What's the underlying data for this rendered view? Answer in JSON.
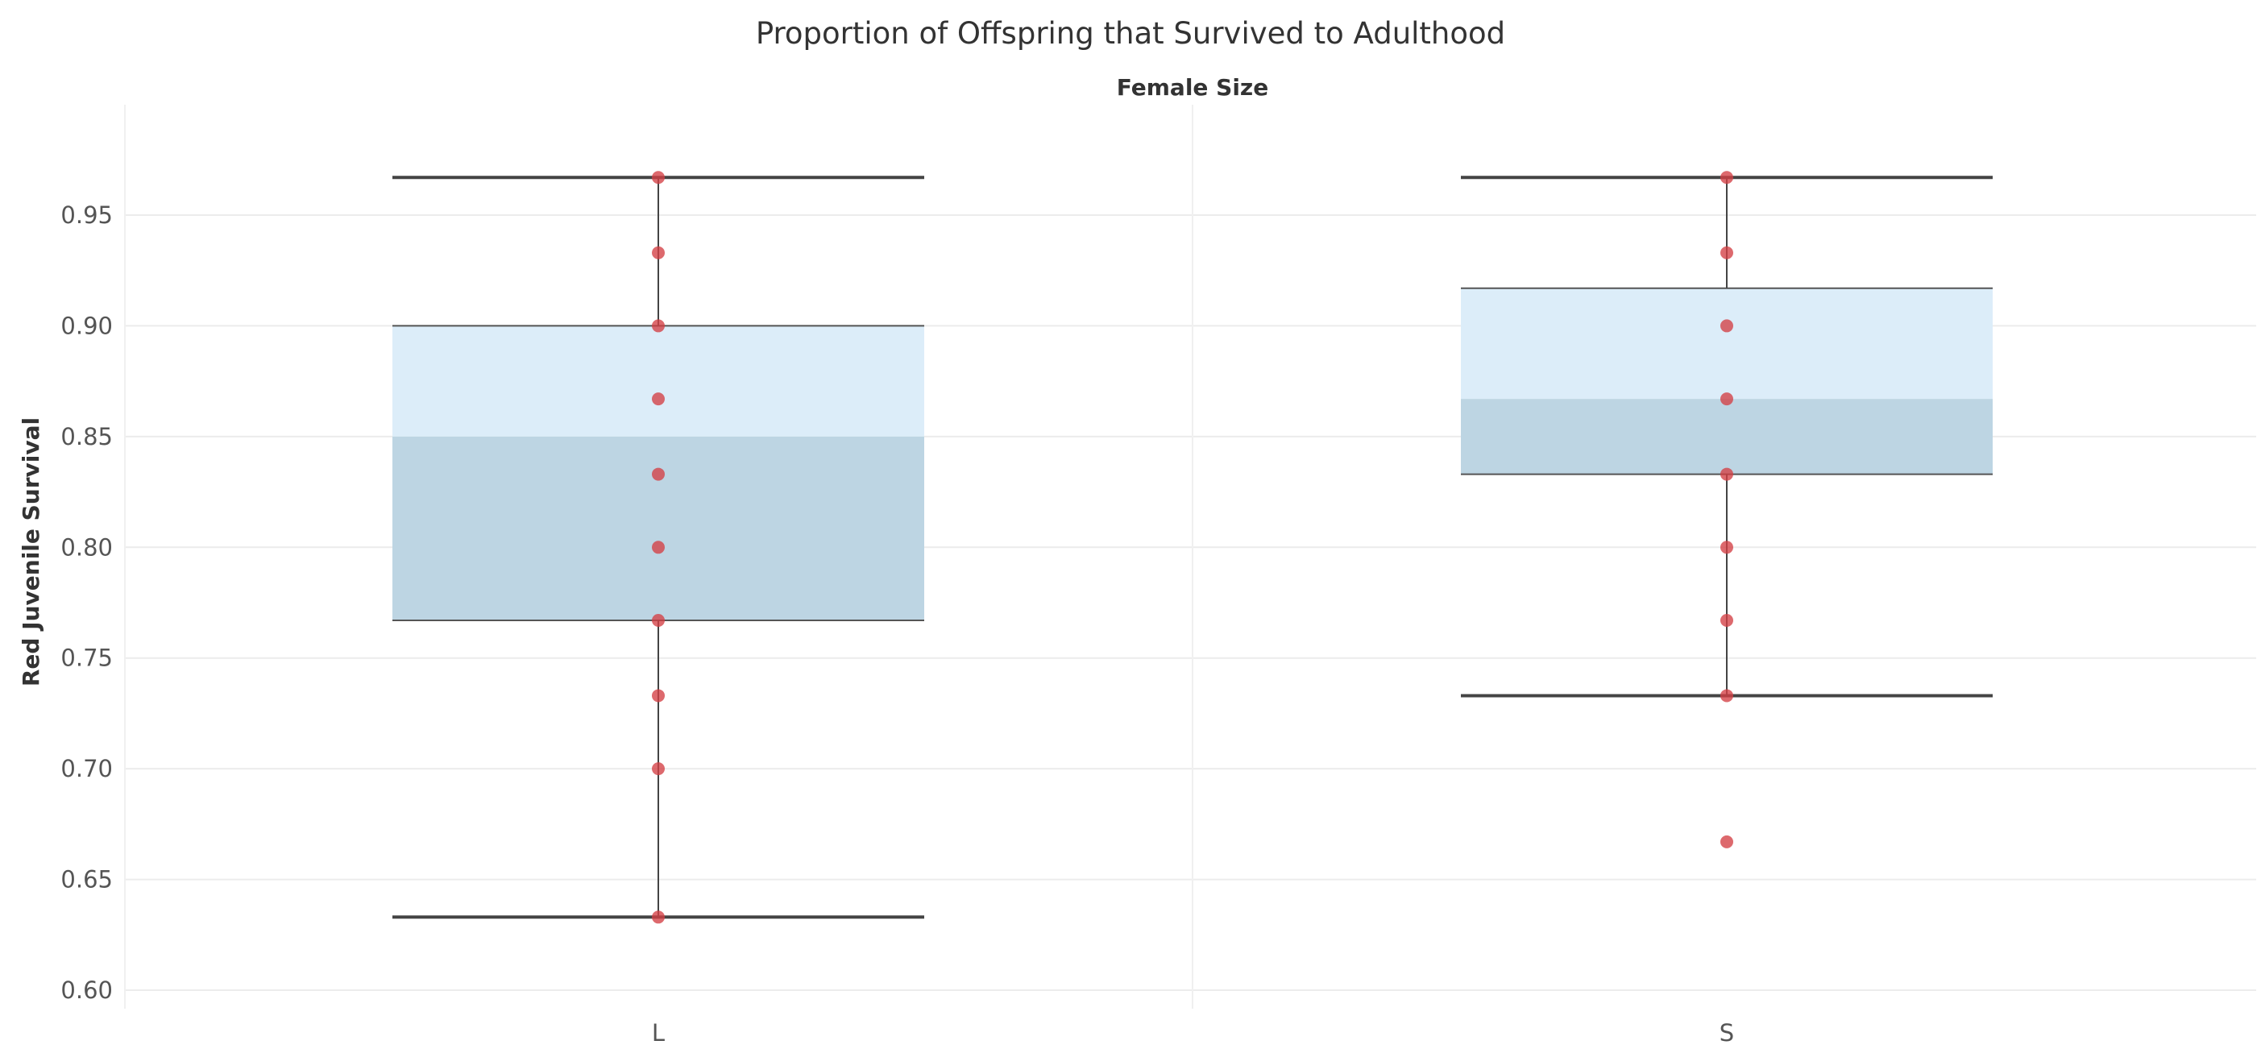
{
  "chart_data": {
    "type": "box",
    "title": "Proportion of Offspring that Survived to Adulthood",
    "facet_label": "Female Size",
    "ylabel": "Red Juvenile Survival",
    "ylim": [
      0.595,
      0.99
    ],
    "yticks": [
      0.6,
      0.65,
      0.7,
      0.75,
      0.8,
      0.85,
      0.9,
      0.95
    ],
    "grid": true,
    "categories": [
      "L",
      "S"
    ],
    "boxes": [
      {
        "category": "L",
        "whisker_low": 0.633,
        "q1": 0.767,
        "median": 0.85,
        "q3": 0.9,
        "whisker_high": 0.967,
        "points": [
          0.967,
          0.933,
          0.9,
          0.867,
          0.833,
          0.8,
          0.767,
          0.733,
          0.7,
          0.633
        ]
      },
      {
        "category": "S",
        "whisker_low": 0.733,
        "q1": 0.833,
        "median": 0.867,
        "q3": 0.917,
        "whisker_high": 0.967,
        "points": [
          0.967,
          0.933,
          0.9,
          0.867,
          0.833,
          0.8,
          0.767,
          0.733,
          0.667
        ]
      }
    ],
    "colors": {
      "box_upper": "#dcedf9",
      "box_lower": "#bdd5e3",
      "point": "#d33f44",
      "whisker": "#444444",
      "grid": "#ececec"
    }
  }
}
